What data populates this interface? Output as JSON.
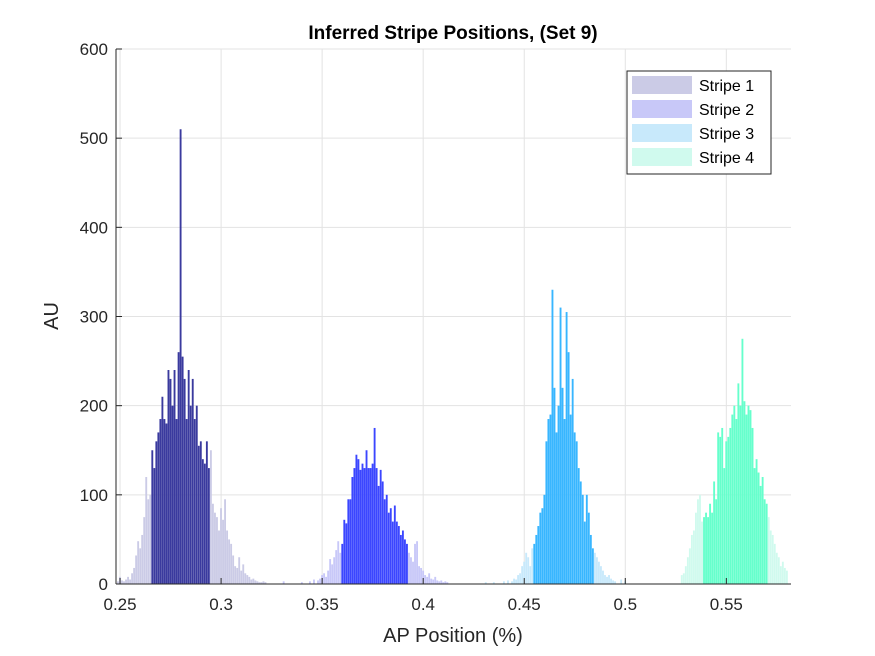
{
  "chart_data": {
    "type": "bar",
    "title": "Inferred Stripe Positions,  (Set 9)",
    "xlabel": "AP Position (%)",
    "ylabel": "AU",
    "xlim": [
      0.248,
      0.582
    ],
    "ylim": [
      0,
      600
    ],
    "xticks": [
      0.25,
      0.3,
      0.35,
      0.4,
      0.45,
      0.5,
      0.55
    ],
    "xtick_labels": [
      "0.25",
      "0.3",
      "0.35",
      "0.4",
      "0.45",
      "0.5",
      "0.55"
    ],
    "yticks": [
      0,
      100,
      200,
      300,
      400,
      500,
      600
    ],
    "ytick_labels": [
      "0",
      "100",
      "200",
      "300",
      "400",
      "500",
      "600"
    ],
    "grid": true,
    "legend_position": "top-right",
    "bin_width": 0.001,
    "series": [
      {
        "name": "Stripe 1",
        "light_color": "#cbcbe6",
        "dark_color": "#3a3a9e",
        "core_range": [
          0.266,
          0.294
        ],
        "x": [
          0.249,
          0.25,
          0.251,
          0.252,
          0.253,
          0.254,
          0.255,
          0.256,
          0.257,
          0.258,
          0.259,
          0.26,
          0.261,
          0.262,
          0.263,
          0.264,
          0.265,
          0.266,
          0.267,
          0.268,
          0.269,
          0.27,
          0.271,
          0.272,
          0.273,
          0.274,
          0.275,
          0.276,
          0.277,
          0.278,
          0.279,
          0.28,
          0.281,
          0.282,
          0.283,
          0.284,
          0.285,
          0.286,
          0.287,
          0.288,
          0.289,
          0.29,
          0.291,
          0.292,
          0.293,
          0.294,
          0.295,
          0.296,
          0.297,
          0.298,
          0.299,
          0.3,
          0.301,
          0.302,
          0.303,
          0.304,
          0.305,
          0.306,
          0.307,
          0.308,
          0.309,
          0.31,
          0.311,
          0.312,
          0.313,
          0.314,
          0.315,
          0.316,
          0.317,
          0.318,
          0.319,
          0.32,
          0.321,
          0.322
        ],
        "y": [
          3,
          8,
          4,
          3,
          5,
          8,
          5,
          12,
          18,
          32,
          48,
          40,
          55,
          75,
          120,
          95,
          100,
          150,
          130,
          160,
          170,
          185,
          210,
          185,
          180,
          240,
          230,
          200,
          240,
          185,
          260,
          510,
          255,
          230,
          185,
          240,
          200,
          230,
          185,
          200,
          155,
          160,
          140,
          135,
          160,
          130,
          150,
          90,
          80,
          75,
          60,
          85,
          72,
          95,
          60,
          50,
          45,
          32,
          20,
          18,
          30,
          15,
          22,
          12,
          10,
          8,
          5,
          6,
          4,
          3,
          2,
          2,
          3,
          2
        ]
      },
      {
        "name": "Stripe 2",
        "light_color": "#c8c8f8",
        "dark_color": "#3b46ff",
        "core_range": [
          0.36,
          0.392
        ],
        "x": [
          0.331,
          0.34,
          0.344,
          0.346,
          0.348,
          0.349,
          0.35,
          0.351,
          0.352,
          0.353,
          0.354,
          0.355,
          0.356,
          0.357,
          0.358,
          0.359,
          0.36,
          0.361,
          0.362,
          0.363,
          0.364,
          0.365,
          0.366,
          0.367,
          0.368,
          0.369,
          0.37,
          0.371,
          0.372,
          0.373,
          0.374,
          0.375,
          0.376,
          0.377,
          0.378,
          0.379,
          0.38,
          0.381,
          0.382,
          0.383,
          0.384,
          0.385,
          0.386,
          0.387,
          0.388,
          0.389,
          0.39,
          0.391,
          0.392,
          0.393,
          0.394,
          0.395,
          0.396,
          0.397,
          0.398,
          0.399,
          0.4,
          0.401,
          0.402,
          0.403,
          0.404,
          0.405,
          0.406,
          0.407,
          0.408,
          0.409,
          0.41,
          0.411,
          0.412
        ],
        "y": [
          3,
          2,
          3,
          5,
          4,
          6,
          10,
          12,
          8,
          15,
          28,
          22,
          30,
          38,
          48,
          35,
          45,
          72,
          68,
          95,
          95,
          120,
          130,
          145,
          140,
          128,
          135,
          130,
          150,
          130,
          130,
          135,
          175,
          130,
          110,
          128,
          115,
          95,
          100,
          80,
          85,
          70,
          88,
          70,
          65,
          55,
          60,
          50,
          45,
          35,
          30,
          25,
          45,
          48,
          20,
          18,
          15,
          10,
          8,
          12,
          6,
          5,
          8,
          4,
          3,
          4,
          2,
          3,
          2
        ]
      },
      {
        "name": "Stripe 3",
        "light_color": "#c8e9fb",
        "dark_color": "#38b6ff",
        "core_range": [
          0.455,
          0.484
        ],
        "x": [
          0.431,
          0.435,
          0.44,
          0.442,
          0.444,
          0.445,
          0.446,
          0.447,
          0.448,
          0.449,
          0.45,
          0.451,
          0.452,
          0.453,
          0.454,
          0.455,
          0.456,
          0.457,
          0.458,
          0.459,
          0.46,
          0.461,
          0.462,
          0.463,
          0.464,
          0.465,
          0.466,
          0.467,
          0.468,
          0.469,
          0.47,
          0.471,
          0.472,
          0.473,
          0.474,
          0.475,
          0.476,
          0.477,
          0.478,
          0.479,
          0.48,
          0.481,
          0.482,
          0.483,
          0.484,
          0.485,
          0.486,
          0.487,
          0.488,
          0.489,
          0.49,
          0.491,
          0.492,
          0.493,
          0.494,
          0.495,
          0.498,
          0.5
        ],
        "y": [
          2,
          2,
          3,
          4,
          3,
          6,
          5,
          10,
          12,
          20,
          25,
          35,
          30,
          20,
          40,
          45,
          55,
          65,
          80,
          85,
          100,
          160,
          185,
          190,
          330,
          220,
          170,
          200,
          310,
          220,
          185,
          305,
          260,
          190,
          230,
          170,
          160,
          130,
          115,
          100,
          70,
          100,
          80,
          55,
          40,
          35,
          30,
          25,
          20,
          15,
          10,
          8,
          10,
          6,
          4,
          3,
          5,
          3
        ]
      },
      {
        "name": "Stripe 4",
        "light_color": "#d0faee",
        "dark_color": "#66ffcc",
        "core_range": [
          0.539,
          0.57
        ],
        "x": [
          0.528,
          0.529,
          0.53,
          0.531,
          0.532,
          0.533,
          0.534,
          0.535,
          0.536,
          0.537,
          0.538,
          0.539,
          0.54,
          0.541,
          0.542,
          0.543,
          0.544,
          0.545,
          0.546,
          0.547,
          0.548,
          0.549,
          0.55,
          0.551,
          0.552,
          0.553,
          0.554,
          0.555,
          0.556,
          0.557,
          0.558,
          0.559,
          0.56,
          0.561,
          0.562,
          0.563,
          0.564,
          0.565,
          0.566,
          0.567,
          0.568,
          0.569,
          0.57,
          0.571,
          0.572,
          0.573,
          0.574,
          0.575,
          0.576,
          0.577,
          0.578,
          0.579,
          0.58
        ],
        "y": [
          10,
          12,
          20,
          30,
          40,
          55,
          60,
          80,
          95,
          100,
          70,
          75,
          80,
          75,
          90,
          80,
          115,
          95,
          170,
          165,
          175,
          130,
          160,
          165,
          175,
          190,
          200,
          185,
          225,
          200,
          275,
          205,
          190,
          200,
          195,
          175,
          130,
          140,
          125,
          110,
          120,
          95,
          90,
          75,
          60,
          55,
          45,
          35,
          30,
          20,
          25,
          18,
          15
        ]
      }
    ]
  }
}
